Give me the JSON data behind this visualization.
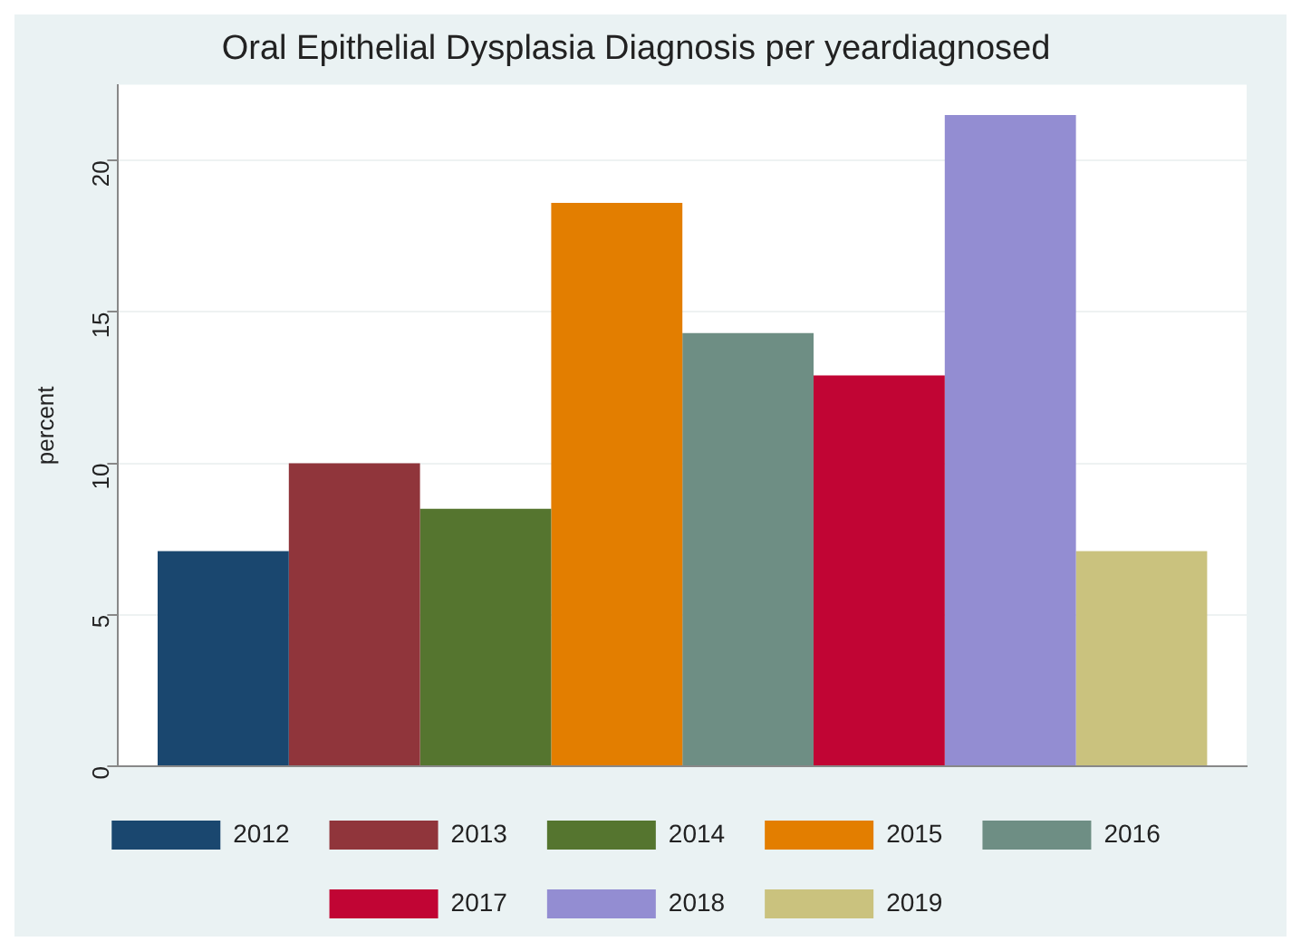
{
  "chart_data": {
    "type": "bar",
    "title": "Oral Epithelial Dysplasia Diagnosis per yeardiagnosed",
    "ylabel": "percent",
    "categories": [
      null
    ],
    "series": [
      {
        "name": "2012",
        "color": "#1a476f",
        "values": [
          7.1
        ]
      },
      {
        "name": "2013",
        "color": "#90353b",
        "values": [
          10.0
        ]
      },
      {
        "name": "2014",
        "color": "#55752f",
        "values": [
          8.5
        ]
      },
      {
        "name": "2015",
        "color": "#e37e00",
        "values": [
          18.6
        ]
      },
      {
        "name": "2016",
        "color": "#6e8e84",
        "values": [
          14.3
        ]
      },
      {
        "name": "2017",
        "color": "#c10534",
        "values": [
          12.9
        ]
      },
      {
        "name": "2018",
        "color": "#938dd2",
        "values": [
          21.5
        ]
      },
      {
        "name": "2019",
        "color": "#cac27e",
        "values": [
          7.1
        ]
      }
    ],
    "ylim": [
      0,
      22.5
    ],
    "yticks": [
      0,
      5,
      10,
      15,
      20
    ],
    "grid": "y",
    "legend": "bottom"
  }
}
